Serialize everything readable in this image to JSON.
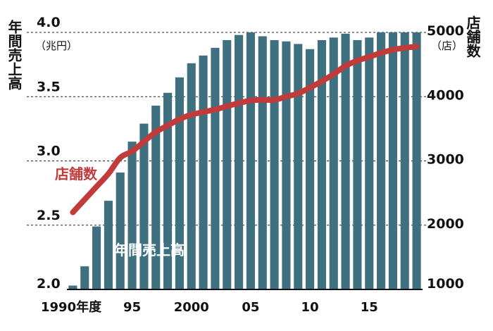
{
  "chart_data": {
    "type": "bar",
    "x": [
      1990,
      1991,
      1992,
      1993,
      1994,
      1995,
      1996,
      1997,
      1998,
      1999,
      2000,
      2001,
      2002,
      2003,
      2004,
      2005,
      2006,
      2007,
      2008,
      2009,
      2010,
      2011,
      2012,
      2013,
      2014,
      2015,
      2016,
      2017,
      2018,
      2019
    ],
    "x_tick_labels": [
      {
        "x": 1990,
        "label": "1990年度"
      },
      {
        "x": 1995,
        "label": "95"
      },
      {
        "x": 2000,
        "label": "2000"
      },
      {
        "x": 2005,
        "label": "05"
      },
      {
        "x": 2010,
        "label": "10"
      },
      {
        "x": 2015,
        "label": "15"
      }
    ],
    "series": [
      {
        "name": "年間売上高",
        "axis": "left",
        "type": "bar",
        "color": "#3f7080",
        "values": [
          2.03,
          2.18,
          2.49,
          2.69,
          2.91,
          3.15,
          3.29,
          3.43,
          3.53,
          3.65,
          3.76,
          3.82,
          3.88,
          3.94,
          3.98,
          4.0,
          3.97,
          3.94,
          3.93,
          3.91,
          3.87,
          3.94,
          3.96,
          3.99,
          3.94,
          3.96,
          4.0,
          4.0,
          4.0,
          4.0
        ]
      },
      {
        "name": "店舗数",
        "axis": "right",
        "type": "line",
        "color": "#c23b3b",
        "values": [
          2200,
          2400,
          2600,
          2800,
          3050,
          3150,
          3300,
          3450,
          3550,
          3650,
          3720,
          3760,
          3800,
          3850,
          3900,
          3940,
          3950,
          3950,
          4000,
          4050,
          4140,
          4240,
          4350,
          4480,
          4560,
          4620,
          4680,
          4730,
          4760,
          4780
        ]
      }
    ],
    "left_axis": {
      "title": "年間売上高",
      "unit": "（兆円）",
      "ylim": [
        2.0,
        4.0
      ],
      "ticks": [
        "2.0",
        "2.5",
        "3.0",
        "3.5",
        "4.0"
      ]
    },
    "right_axis": {
      "title": "店舗数",
      "unit": "（店）",
      "ylim": [
        1000,
        5000
      ],
      "ticks": [
        "1000",
        "2000",
        "3000",
        "4000",
        "5000"
      ]
    },
    "grid": "horizontal-dashed"
  }
}
